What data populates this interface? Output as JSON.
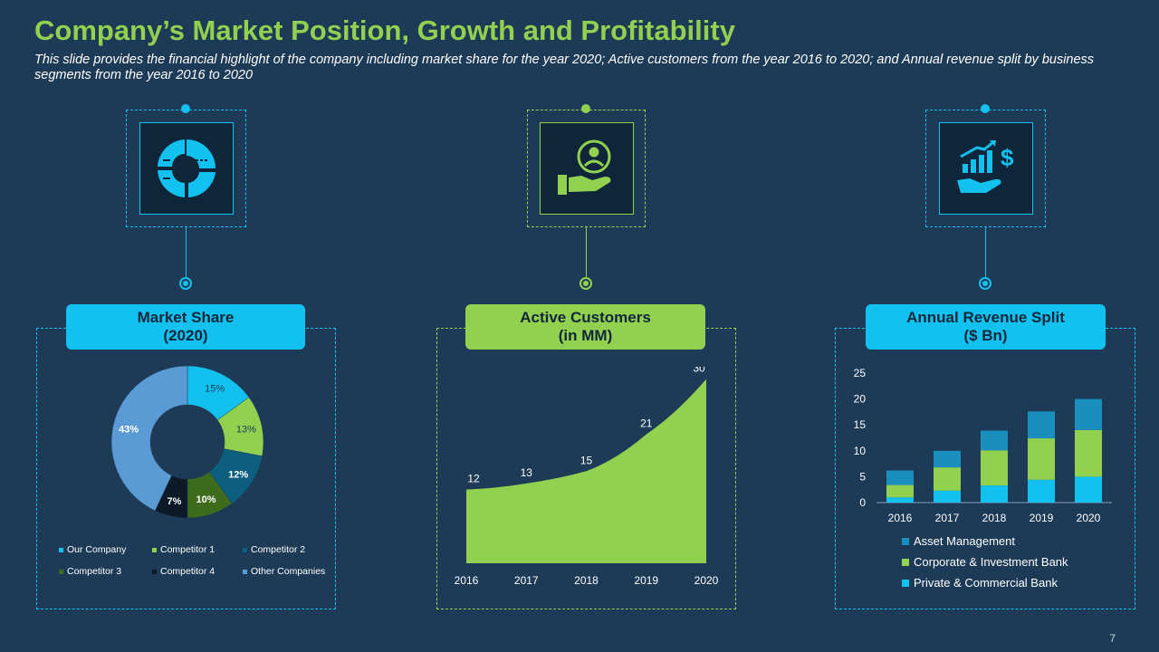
{
  "slide": {
    "title": "Company’s Market Position, Growth and Profitability",
    "subtitle": "This slide provides the financial highlight of the company including market share for the year 2020; Active customers from the year 2016 to 2020; and Annual revenue split by business segments from the year 2016 to 2020",
    "page_number": "7"
  },
  "colors": {
    "background": "#1d3a56",
    "blue_accent": "#12c1ee",
    "green_accent": "#92d050",
    "title_green": "#92d050"
  },
  "panels": {
    "market_share": {
      "title_line1": "Market Share",
      "title_line2": "(2020)",
      "icon": "donut-chart-icon"
    },
    "active_customers": {
      "title_line1": "Active Customers",
      "title_line2": "(in MM)",
      "icon": "hand-user-icon"
    },
    "revenue": {
      "title_line1": "Annual Revenue Split",
      "title_line2": "($ Bn)",
      "icon": "hand-dollar-growth-icon"
    }
  },
  "chart_data": [
    {
      "type": "pie",
      "title": "",
      "categories": [
        "Our Company",
        "Competitor 1",
        "Competitor 2",
        "Competitor 3",
        "Competitor 4",
        "Other Companies"
      ],
      "values": [
        15,
        13,
        12,
        10,
        7,
        43
      ],
      "labels": [
        "15%",
        "13%",
        "12%",
        "10%",
        "7%",
        "43%"
      ],
      "colors": [
        "#12c1ee",
        "#92d050",
        "#0d5f7f",
        "#3f6b1c",
        "#0c1a28",
        "#5b9bd5"
      ],
      "legend_position": "bottom"
    },
    {
      "type": "area",
      "title": "",
      "x": [
        "2016",
        "2017",
        "2018",
        "2019",
        "2020"
      ],
      "values": [
        12,
        13,
        15,
        21,
        30
      ],
      "labels": [
        "12",
        "13",
        "15",
        "21",
        "30"
      ],
      "color": "#92d050",
      "ylim": [
        0,
        32
      ]
    },
    {
      "type": "bar",
      "stacked": true,
      "title": "",
      "categories": [
        "2016",
        "2017",
        "2018",
        "2019",
        "2020"
      ],
      "series": [
        {
          "name": "Private & Commercial Bank",
          "values": [
            1,
            2.3,
            3.3,
            4.4,
            5
          ],
          "color": "#12c1ee"
        },
        {
          "name": "Corporate & Investment Bank",
          "values": [
            2.4,
            4.5,
            6.8,
            8,
            9
          ],
          "color": "#92d050"
        },
        {
          "name": "Asset Management",
          "values": [
            2.8,
            3.2,
            3.8,
            5.2,
            6
          ],
          "color": "#1a8fbf"
        }
      ],
      "yticks": [
        "0",
        "5",
        "10",
        "15",
        "20",
        "25"
      ],
      "ylim": [
        0,
        25
      ],
      "legend_order": [
        "Asset Management",
        "Corporate & Investment Bank",
        "Private & Commercial Bank"
      ],
      "legend_position": "bottom"
    }
  ]
}
